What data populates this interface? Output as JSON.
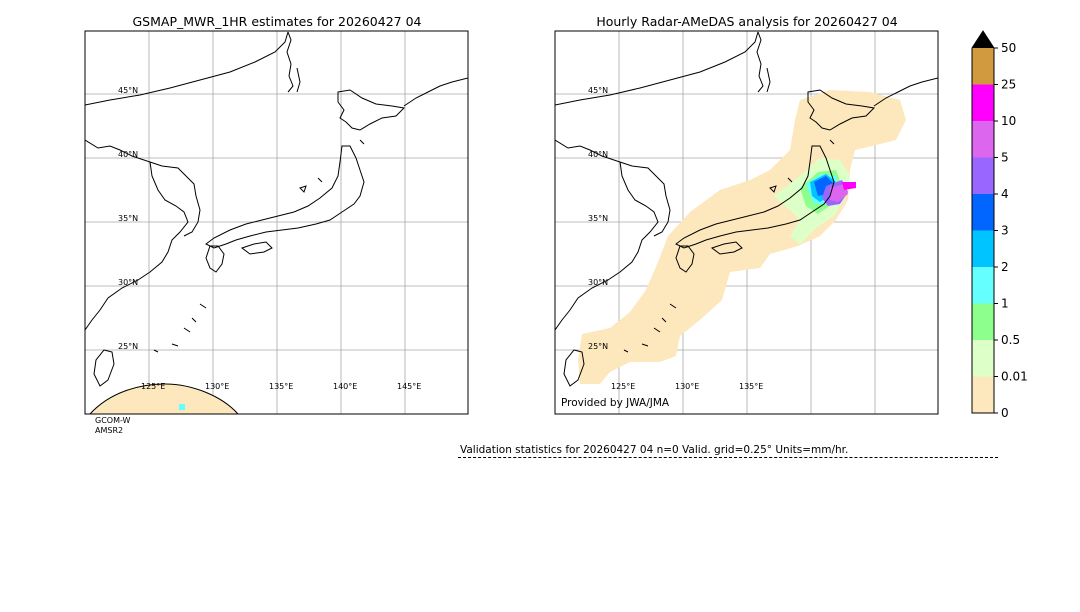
{
  "left_panel": {
    "title": "GSMAP_MWR_1HR estimates for 20260427 04",
    "lat_labels": [
      "45°N",
      "40°N",
      "35°N",
      "30°N",
      "25°N"
    ],
    "lon_labels": [
      "125°E",
      "130°E",
      "135°E",
      "140°E",
      "145°E"
    ],
    "satellite_lines": [
      "GCOM-W",
      "AMSR2"
    ]
  },
  "right_panel": {
    "title": "Hourly Radar-AMeDAS analysis for 20260427 04",
    "lat_labels": [
      "45°N",
      "40°N",
      "35°N",
      "30°N",
      "25°N"
    ],
    "lon_labels": [
      "125°E",
      "130°E",
      "135°E"
    ],
    "provided_by": "Provided by JWA/JMA"
  },
  "colorbar": {
    "labels": [
      "50",
      "25",
      "10",
      "5",
      "4",
      "3",
      "2",
      "1",
      "0.5",
      "0.01",
      "0"
    ],
    "colors": [
      "#d19a3e",
      "#ff00ff",
      "#dd66ee",
      "#9966ff",
      "#0066ff",
      "#00c4ff",
      "#66ffff",
      "#8dff8d",
      "#ddffc8",
      "#fde8bd"
    ],
    "extend_color": "#000000"
  },
  "validation": {
    "text": "Validation statistics for 20260427 04  n=0 Valid. grid=0.25° Units=mm/hr."
  }
}
